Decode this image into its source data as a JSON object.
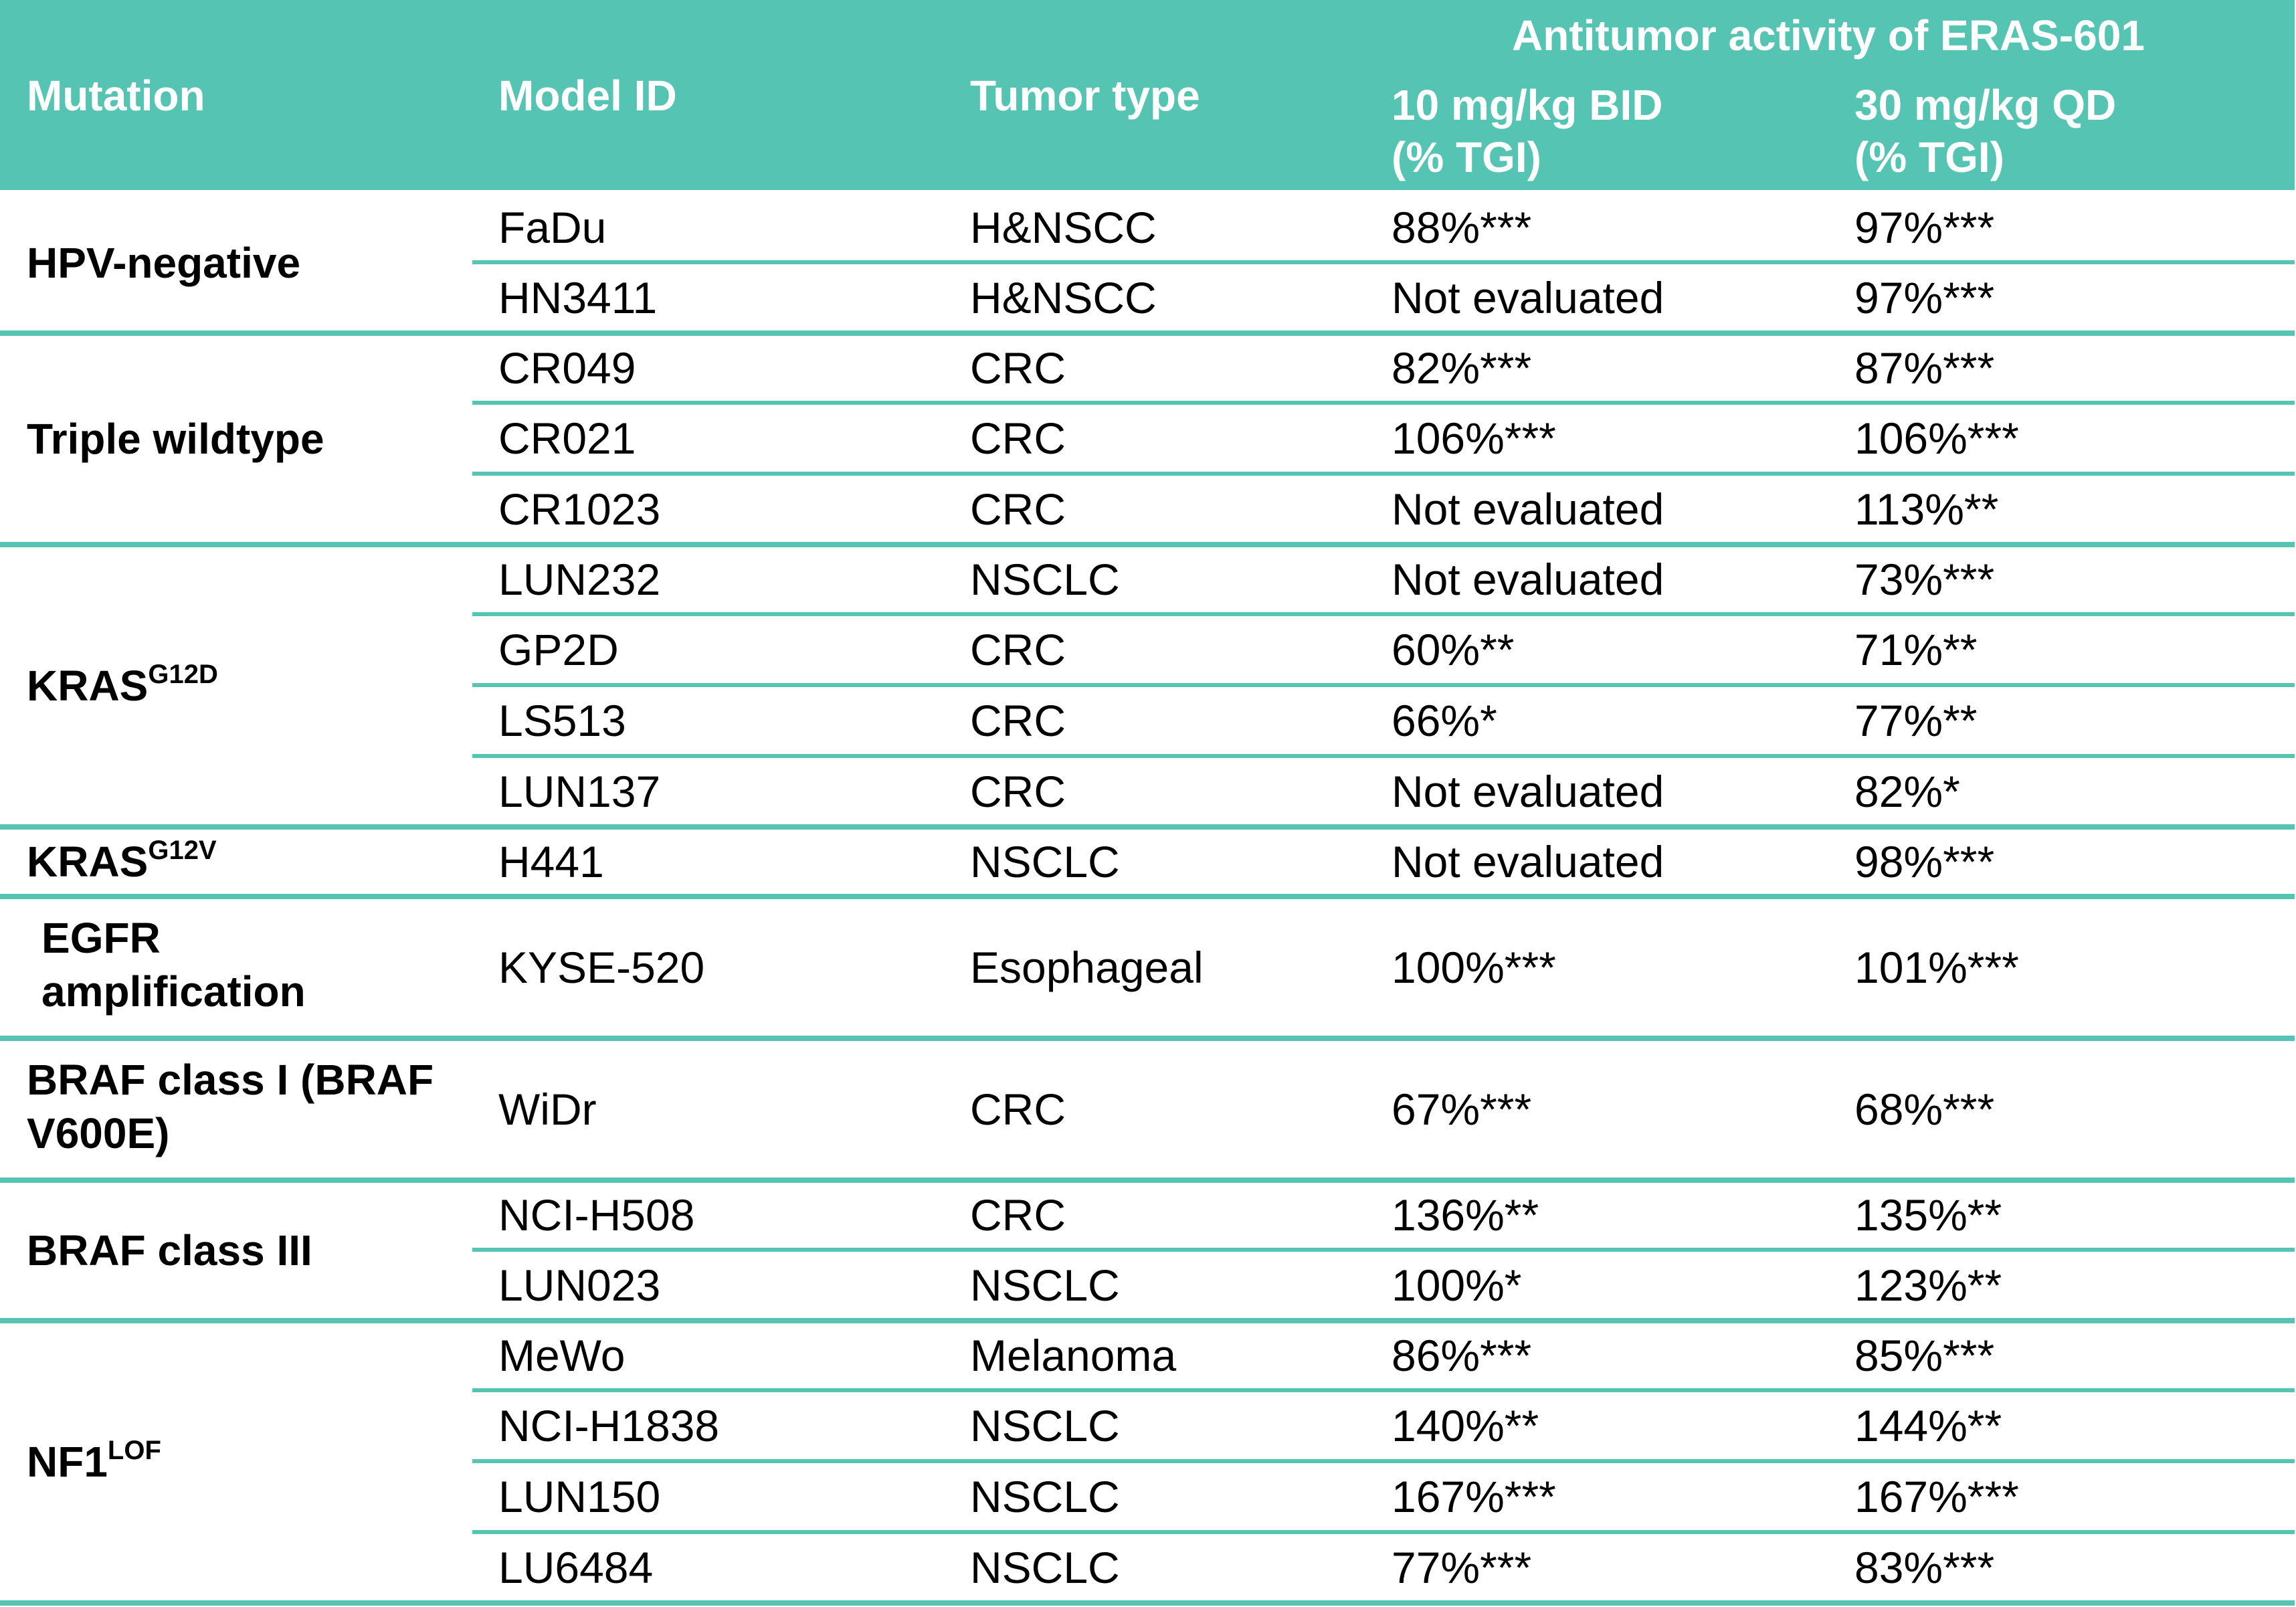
{
  "header": {
    "mutation": "Mutation",
    "model_id": "Model ID",
    "tumor_type": "Tumor type",
    "group": "Antitumor activity of ERAS-601",
    "dose1_line1": "10 mg/kg BID",
    "dose1_line2": "(% TGI)",
    "dose2_line1": "30 mg/kg QD",
    "dose2_line2": "(% TGI)"
  },
  "groups": [
    {
      "mutation": "HPV-negative",
      "mutation_sup": "",
      "rows": [
        {
          "model": "FaDu",
          "tumor": "H&NSCC",
          "dose10": "88%***",
          "dose30": "97%***"
        },
        {
          "model": "HN3411",
          "tumor": "H&NSCC",
          "dose10": "Not evaluated",
          "dose30": "97%***"
        }
      ]
    },
    {
      "mutation": "Triple wildtype",
      "mutation_sup": "",
      "rows": [
        {
          "model": "CR049",
          "tumor": "CRC",
          "dose10": "82%***",
          "dose30": "87%***"
        },
        {
          "model": "CR021",
          "tumor": "CRC",
          "dose10": "106%***",
          "dose30": "106%***"
        },
        {
          "model": "CR1023",
          "tumor": "CRC",
          "dose10": "Not evaluated",
          "dose30": "113%**"
        }
      ]
    },
    {
      "mutation": "KRAS",
      "mutation_sup": "G12D",
      "rows": [
        {
          "model": "LUN232",
          "tumor": "NSCLC",
          "dose10": "Not evaluated",
          "dose30": "73%***"
        },
        {
          "model": "GP2D",
          "tumor": "CRC",
          "dose10": "60%**",
          "dose30": "71%**"
        },
        {
          "model": "LS513",
          "tumor": "CRC",
          "dose10": "66%*",
          "dose30": "77%**"
        },
        {
          "model": "LUN137",
          "tumor": "CRC",
          "dose10": "Not evaluated",
          "dose30": "82%*"
        }
      ]
    },
    {
      "mutation": "KRAS",
      "mutation_sup": "G12V",
      "rows": [
        {
          "model": "H441",
          "tumor": "NSCLC",
          "dose10": "Not evaluated",
          "dose30": "98%***"
        }
      ]
    },
    {
      "mutation_line1": "EGFR",
      "mutation_line2": "amplification",
      "rows": [
        {
          "model": "KYSE-520",
          "tumor": "Esophageal",
          "dose10": "100%***",
          "dose30": "101%***"
        }
      ]
    },
    {
      "mutation_line1": "BRAF class I (BRAF",
      "mutation_line2": "V600E)",
      "rows": [
        {
          "model": "WiDr",
          "tumor": "CRC",
          "dose10": "67%***",
          "dose30": "68%***"
        }
      ]
    },
    {
      "mutation": "BRAF class III",
      "mutation_sup": "",
      "rows": [
        {
          "model": "NCI-H508",
          "tumor": "CRC",
          "dose10": "136%**",
          "dose30": "135%**"
        },
        {
          "model": "LUN023",
          "tumor": "NSCLC",
          "dose10": "100%*",
          "dose30": "123%**"
        }
      ]
    },
    {
      "mutation": "NF1",
      "mutation_sup": "LOF",
      "rows": [
        {
          "model": "MeWo",
          "tumor": "Melanoma",
          "dose10": "86%***",
          "dose30": "85%***"
        },
        {
          "model": "NCI-H1838",
          "tumor": "NSCLC",
          "dose10": "140%**",
          "dose30": "144%**"
        },
        {
          "model": "LUN150",
          "tumor": "NSCLC",
          "dose10": "167%***",
          "dose30": "167%***"
        },
        {
          "model": "LU6484",
          "tumor": "NSCLC",
          "dose10": "77%***",
          "dose30": "83%***"
        }
      ]
    }
  ]
}
